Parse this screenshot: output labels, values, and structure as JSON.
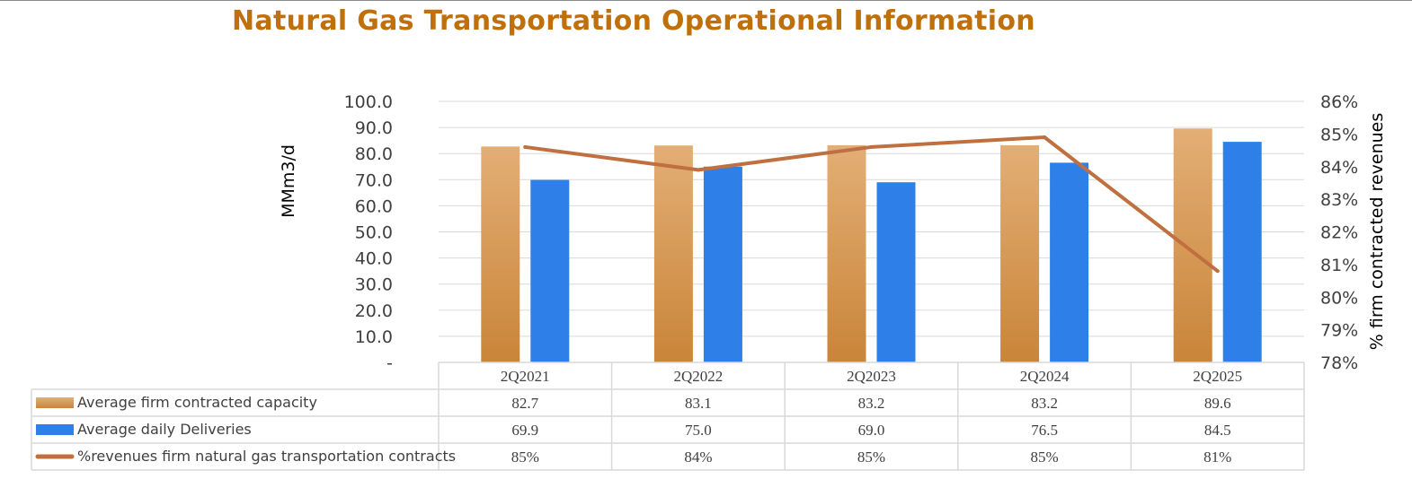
{
  "chart_data": {
    "type": "bar",
    "title": "Natural Gas Transportation Operational Information",
    "categories": [
      "2Q2021",
      "2Q2022",
      "2Q2023",
      "2Q2024",
      "2Q2025"
    ],
    "ylabel": "MMm3/d",
    "y2label": "% firm contracted revenues",
    "ylim": [
      0,
      100
    ],
    "y2lim": [
      78,
      86
    ],
    "yticks": [
      "-",
      "10.0",
      "20.0",
      "30.0",
      "40.0",
      "50.0",
      "60.0",
      "70.0",
      "80.0",
      "90.0",
      "100.0"
    ],
    "y2ticks": [
      "78%",
      "79%",
      "80%",
      "81%",
      "82%",
      "83%",
      "84%",
      "85%",
      "86%"
    ],
    "grid": true,
    "legend_placement": "data-table",
    "series": [
      {
        "name": "Average firm contracted capacity",
        "kind": "bar",
        "color": "#d99a55",
        "values": [
          82.7,
          83.1,
          83.2,
          83.2,
          89.6
        ],
        "labels": [
          "82.7",
          "83.1",
          "83.2",
          "83.2",
          "89.6"
        ]
      },
      {
        "name": "Average daily Deliveries",
        "kind": "bar",
        "color": "#2f7fe8",
        "values": [
          69.9,
          75.0,
          69.0,
          76.5,
          84.5
        ],
        "labels": [
          "69.9",
          "75.0",
          "69.0",
          "76.5",
          "84.5"
        ]
      },
      {
        "name": "%revenues firm natural gas transportation contracts",
        "kind": "line",
        "axis": "right",
        "color": "#c0703f",
        "values": [
          84.6,
          83.9,
          84.6,
          84.9,
          80.8
        ],
        "labels": [
          "85%",
          "84%",
          "85%",
          "85%",
          "81%"
        ]
      }
    ]
  }
}
